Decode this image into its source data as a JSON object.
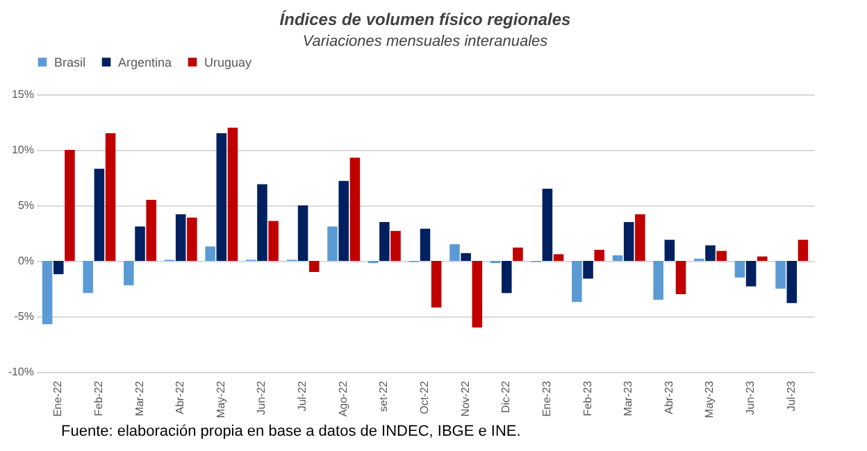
{
  "chart_data": {
    "type": "bar",
    "title": "Índices de volumen físico regionales",
    "subtitle": "Variaciones mensuales interanuales",
    "categories": [
      "Ene-22",
      "Feb-22",
      "Mar-22",
      "Abr-22",
      "May-22",
      "Jun-22",
      "Jul-22",
      "Ago-22",
      "set-22",
      "Oct-22",
      "Nov-22",
      "Dic-22",
      "Ene-23",
      "Feb-23",
      "Mar-23",
      "Abr-23",
      "May-23",
      "Jun-23",
      "Jul-23"
    ],
    "series": [
      {
        "name": "Brasil",
        "color": "#5b9bd5",
        "values": [
          -5.7,
          -2.9,
          -2.2,
          0.1,
          1.3,
          0.1,
          0.1,
          3.1,
          -0.2,
          -0.1,
          1.5,
          -0.2,
          -0.1,
          -3.7,
          0.5,
          -3.5,
          0.2,
          -1.5,
          -2.5
        ]
      },
      {
        "name": "Argentina",
        "color": "#002060",
        "values": [
          -1.2,
          8.3,
          3.1,
          4.2,
          11.5,
          6.9,
          5.0,
          7.2,
          3.5,
          2.9,
          0.7,
          -2.9,
          6.5,
          -1.6,
          3.5,
          1.9,
          1.4,
          -2.3,
          -3.8
        ]
      },
      {
        "name": "Uruguay",
        "color": "#c00000",
        "values": [
          10.0,
          11.5,
          5.5,
          3.9,
          12.0,
          3.6,
          -1.0,
          9.3,
          2.7,
          -4.2,
          -6.0,
          1.2,
          0.6,
          1.0,
          4.2,
          -3.0,
          0.9,
          0.4,
          1.9
        ]
      }
    ],
    "ylim": [
      -10,
      15
    ],
    "yticks": [
      {
        "value": -10,
        "label": "-10%"
      },
      {
        "value": -5,
        "label": "-5%"
      },
      {
        "value": 0,
        "label": "0%"
      },
      {
        "value": 5,
        "label": "5%"
      },
      {
        "value": 10,
        "label": "10%"
      },
      {
        "value": 15,
        "label": "15%"
      }
    ],
    "grid": "y",
    "legend": "top",
    "annotations": [
      "Fuente: elaboración propia en base a datos de INDEC, IBGE e INE."
    ]
  }
}
